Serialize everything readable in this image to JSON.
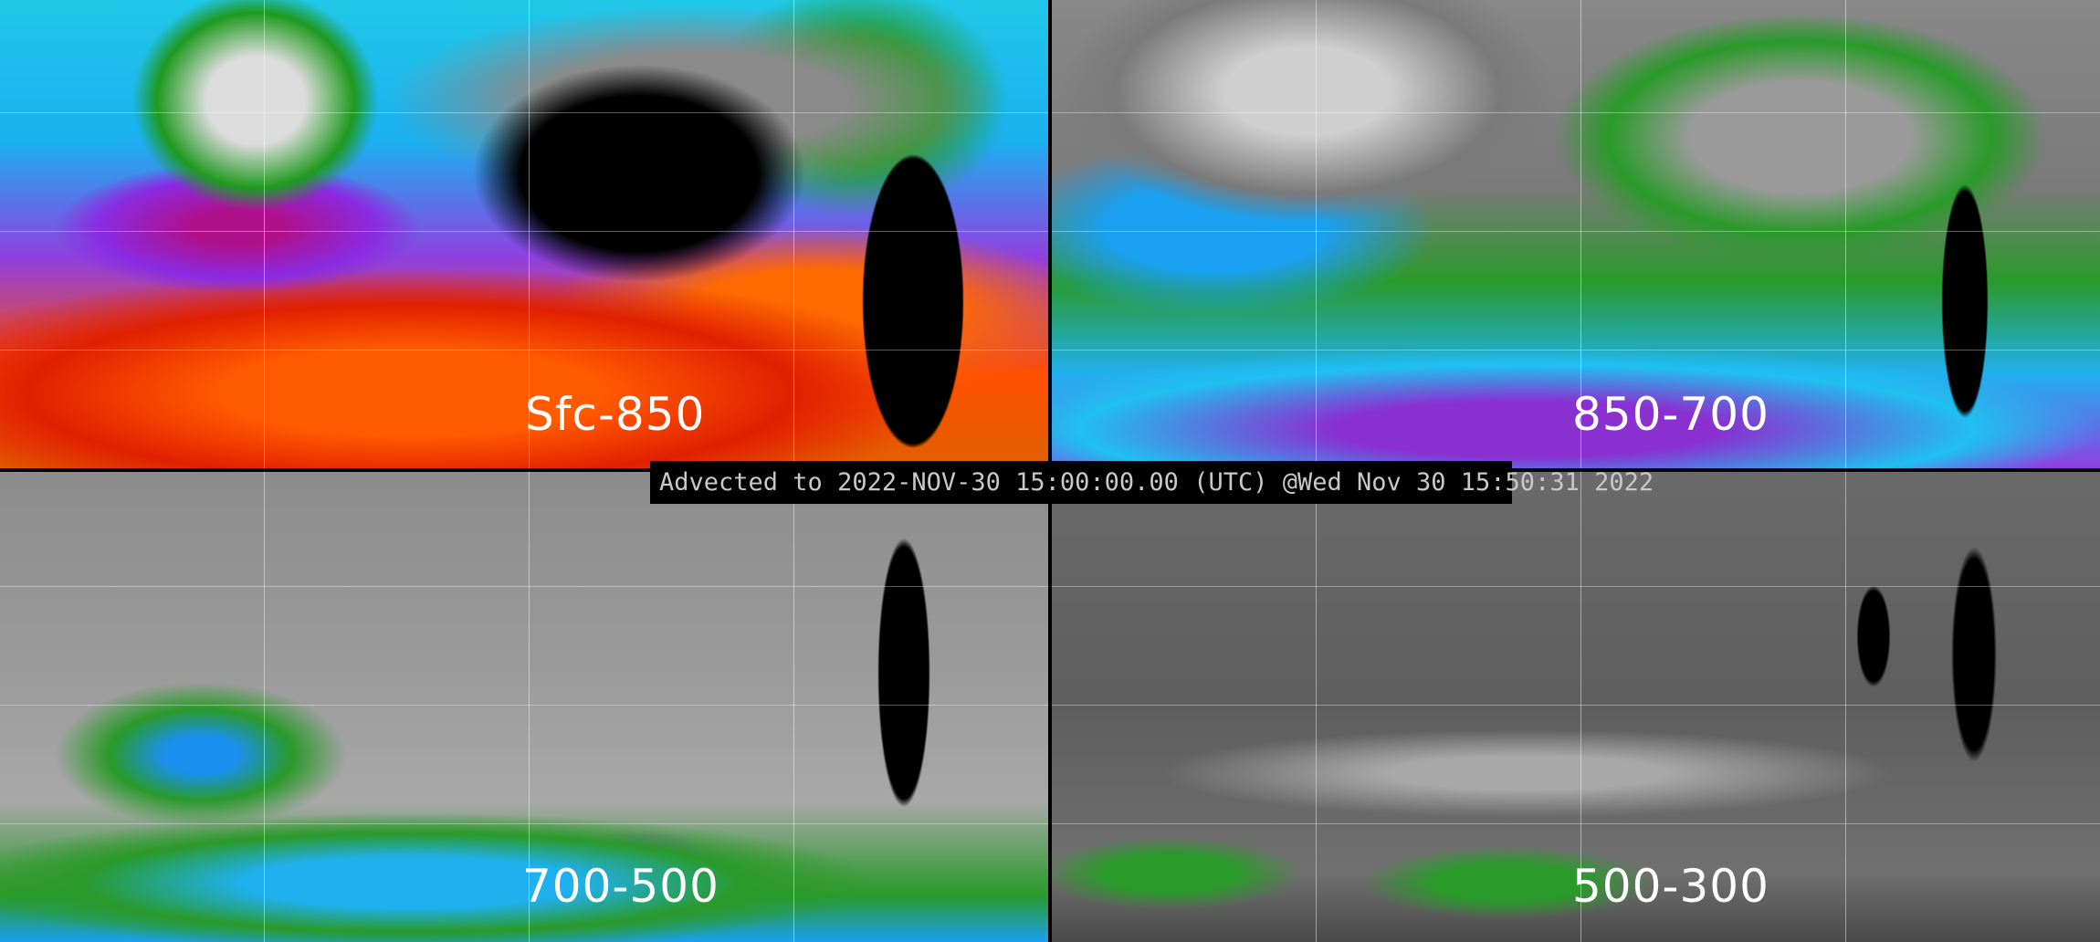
{
  "panels": [
    {
      "label": "Sfc-850"
    },
    {
      "label": "850-700"
    },
    {
      "label": "700-500"
    },
    {
      "label": "500-300"
    }
  ],
  "caption": "Advected to 2022-NOV-30 15:00:00.00 (UTC) @Wed Nov 30 15:50:31 2022",
  "colors": {
    "background": "#000000",
    "caption_text": "#c8c8c8",
    "label_text": "#ffffff"
  }
}
